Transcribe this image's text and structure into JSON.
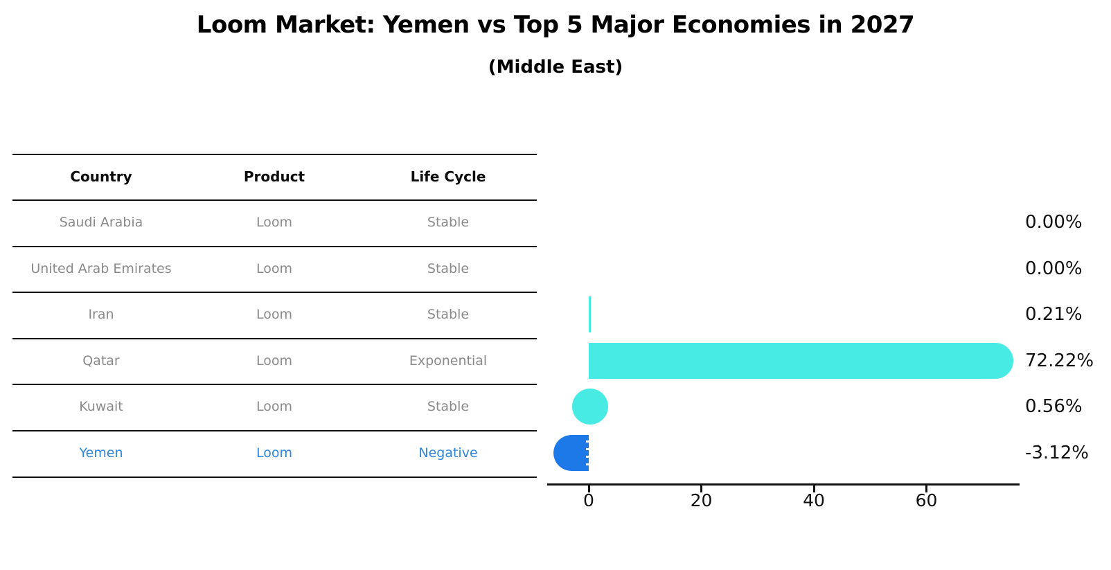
{
  "title": "Loom Market: Yemen vs Top 5 Major Economies in 2027",
  "subtitle": "(Middle East)",
  "table": {
    "headers": {
      "country": "Country",
      "product": "Product",
      "life_cycle": "Life Cycle"
    },
    "rows": [
      {
        "country": "Saudi Arabia",
        "product": "Loom",
        "life_cycle": "Stable",
        "highlight": false
      },
      {
        "country": "United Arab Emirates",
        "product": "Loom",
        "life_cycle": "Stable",
        "highlight": false
      },
      {
        "country": "Iran",
        "product": "Loom",
        "life_cycle": "Stable",
        "highlight": false
      },
      {
        "country": "Qatar",
        "product": "Loom",
        "life_cycle": "Exponential",
        "highlight": false
      },
      {
        "country": "Kuwait",
        "product": "Loom",
        "life_cycle": "Stable",
        "highlight": false
      },
      {
        "country": "Yemen",
        "product": "Loom",
        "life_cycle": "Negative",
        "highlight": true
      }
    ]
  },
  "chart_data": {
    "type": "bar",
    "orientation": "horizontal",
    "title": "Loom Market: Yemen vs Top 5 Major Economies in 2027 (Middle East)",
    "categories": [
      "Saudi Arabia",
      "United Arab Emirates",
      "Iran",
      "Qatar",
      "Kuwait",
      "Yemen"
    ],
    "values": [
      0.0,
      0.0,
      0.21,
      72.22,
      0.56,
      -3.12
    ],
    "value_labels": [
      "0.00%",
      "0.00%",
      "0.21%",
      "72.22%",
      "0.56%",
      "-3.12%"
    ],
    "x_ticks": [
      0,
      20,
      40,
      60
    ],
    "xlim": [
      -7.4,
      76.5
    ],
    "grid": false,
    "legend": false,
    "bar_color_positive": "#48EBE4",
    "bar_color_negative": "#1D79E8",
    "highlight_text_color": "#2E86DE",
    "axis_color": "#111111"
  }
}
